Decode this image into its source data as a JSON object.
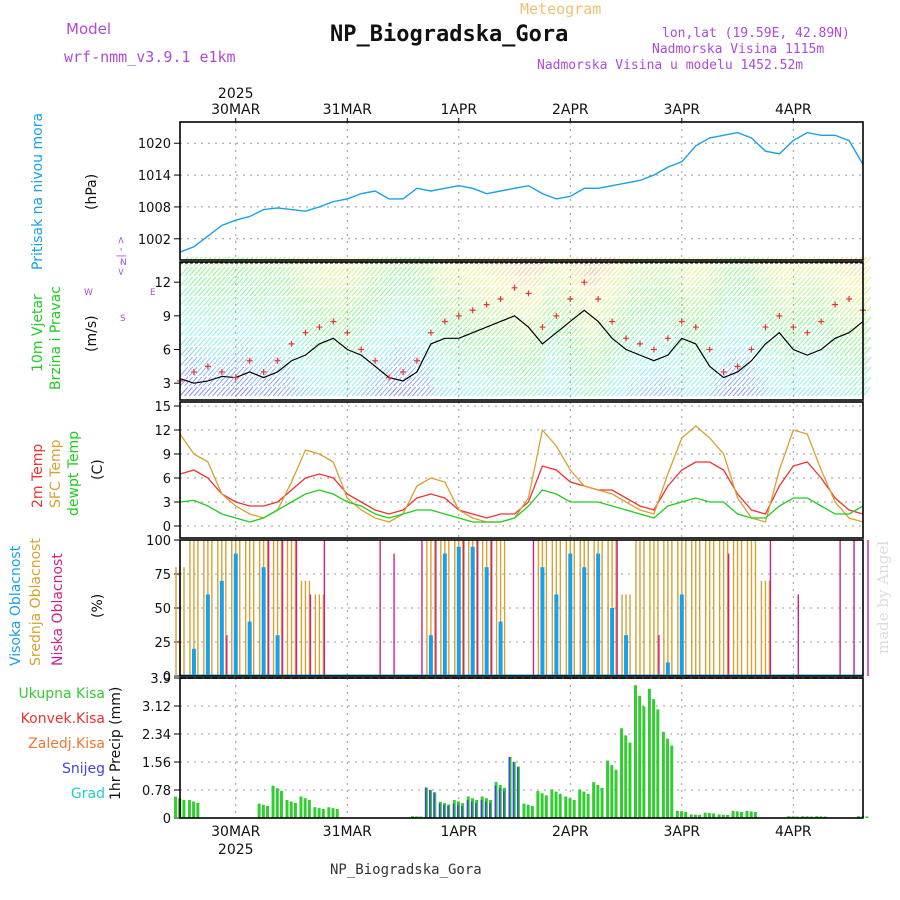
{
  "header": {
    "model_label": "Model",
    "model_name": "wrf-nmm_v3.9.1  e1km",
    "meteogram": "Meteogram",
    "station": "NP_Biogradska_Gora",
    "lonlat": "lon,lat (19.59E, 42.89N)",
    "elevation": "Nadmorska Visina 1115m",
    "model_elevation": "Nadmorska Visina u modelu 1452.52m"
  },
  "footer": {
    "station": "NP_Biogradska_Gora"
  },
  "watermark": "made by Angel",
  "colors": {
    "pressure": "#1aa0e6",
    "temp2m": "#ee3333",
    "sfc": "#d9a032",
    "dew": "#22cc22",
    "high_cloud": "#1aa0e6",
    "mid_cloud": "#d9a032",
    "low_cloud": "#cc2288",
    "total_precip": "#33cc33",
    "conv_precip": "#ee3333",
    "strat_precip": "#ee7733",
    "snow": "#4444dd",
    "grad": "#22cccc",
    "purple": "#b04ad8"
  },
  "time_axis": {
    "year_top": "2025",
    "year_bottom": "2025",
    "days": [
      "30MAR",
      "31MAR",
      "1APR",
      "2APR",
      "3APR",
      "4APR"
    ]
  },
  "panel_labels": {
    "pressure": [
      "Pritisak na nivou mora",
      "(hPa)"
    ],
    "wind": [
      "10m Vjetar",
      "Brzina i Pravac",
      "(m/s)"
    ],
    "wind_rose": {
      "n": "N",
      "s": "S",
      "e": "E",
      "w": "W",
      "arrows": "< - | - >"
    },
    "temp": [
      "2m Temp",
      "SFC Temp",
      "dewpt Temp",
      "(C)"
    ],
    "cloud": [
      "Visoka Oblacnost",
      "Srednja Oblacnost",
      "Niska Oblacnost",
      "(%)"
    ],
    "precip_axis": "1hr Precip (mm)",
    "precip_legend": [
      "Ukupna Kisa",
      "Konvek.Kisa",
      "Zaledj.Kisa",
      "Snijeg",
      "Grad"
    ]
  },
  "chart_data": [
    {
      "type": "line",
      "title": "Pritisak na nivou mora",
      "ylabel": "(hPa)",
      "ylim": [
        998,
        1024
      ],
      "yticks": [
        "1002",
        "1008",
        "1014",
        "1020"
      ],
      "x_hours": [
        0,
        3,
        6,
        9,
        12,
        15,
        18,
        21,
        24,
        27,
        30,
        33,
        36,
        39,
        42,
        45,
        48,
        51,
        54,
        57,
        60,
        63,
        66,
        69,
        72,
        75,
        78,
        81,
        84,
        87,
        90,
        93,
        96,
        99,
        102,
        105,
        108,
        111,
        114,
        117,
        120,
        123,
        126,
        129,
        132,
        135,
        138,
        141,
        144,
        147
      ],
      "series": [
        {
          "values": [
            999.5,
            1000.5,
            1002.5,
            1004.5,
            1005.5,
            1006.2,
            1007.5,
            1007.8,
            1007.5,
            1007.2,
            1008.0,
            1009.0,
            1009.5,
            1010.5,
            1011.0,
            1009.5,
            1009.5,
            1011.5,
            1011.0,
            1011.5,
            1012.0,
            1011.5,
            1010.5,
            1011.0,
            1011.5,
            1012.0,
            1010.5,
            1009.5,
            1010.0,
            1011.5,
            1011.5,
            1012.0,
            1012.5,
            1013.0,
            1014.0,
            1015.5,
            1016.5,
            1019.5,
            1021.0,
            1021.5,
            1022.0,
            1021.0,
            1018.5,
            1018.0,
            1020.5,
            1022.0,
            1021.5,
            1021.5,
            1020.5,
            1016.0
          ]
        }
      ]
    },
    {
      "type": "line",
      "title": "10m Vjetar Brzina i Pravac",
      "ylabel": "(m/s)",
      "ylim": [
        1.5,
        13.8
      ],
      "yticks": [
        "3",
        "6",
        "9",
        "12"
      ],
      "x_hours": [
        0,
        3,
        6,
        9,
        12,
        15,
        18,
        21,
        24,
        27,
        30,
        33,
        36,
        39,
        42,
        45,
        48,
        51,
        54,
        57,
        60,
        63,
        66,
        69,
        72,
        75,
        78,
        81,
        84,
        87,
        90,
        93,
        96,
        99,
        102,
        105,
        108,
        111,
        114,
        117,
        120,
        123,
        126,
        129,
        132,
        135,
        138,
        141,
        144,
        147
      ],
      "series": [
        {
          "values": [
            3.4,
            3.0,
            3.2,
            3.6,
            3.5,
            4.0,
            3.5,
            4.0,
            5.0,
            5.5,
            6.5,
            7.0,
            6.0,
            5.5,
            4.5,
            3.5,
            3.2,
            4.0,
            6.5,
            7.0,
            7.0,
            7.5,
            8.0,
            8.5,
            9.0,
            8.0,
            6.5,
            7.5,
            8.5,
            9.5,
            8.5,
            7.0,
            6.0,
            5.5,
            5.0,
            5.5,
            7.0,
            6.5,
            4.5,
            3.5,
            4.0,
            5.0,
            6.5,
            7.5,
            6.0,
            5.5,
            6.0,
            7.0,
            7.5,
            8.5
          ]
        },
        {
          "values": [
            3.2,
            4.0,
            4.5,
            4.0,
            3.5,
            5.0,
            4.0,
            5.0,
            6.5,
            7.5,
            8.0,
            8.5,
            7.5,
            6.0,
            5.0,
            3.5,
            4.0,
            5.0,
            7.5,
            8.5,
            9.0,
            9.5,
            10.0,
            10.5,
            11.5,
            11.0,
            8.0,
            9.0,
            10.5,
            12.0,
            10.5,
            8.5,
            7.0,
            6.5,
            6.0,
            7.0,
            8.5,
            8.0,
            6.0,
            4.0,
            4.5,
            6.0,
            8.0,
            9.0,
            8.0,
            7.5,
            8.5,
            10.0,
            10.5,
            9.5
          ]
        }
      ]
    },
    {
      "type": "line",
      "title": "2m Temp / SFC Temp / dewpt Temp",
      "ylabel": "(C)",
      "ylim": [
        -1.5,
        15.5
      ],
      "yticks": [
        "0",
        "3",
        "6",
        "9",
        "12",
        "15"
      ],
      "x_hours": [
        0,
        3,
        6,
        9,
        12,
        15,
        18,
        21,
        24,
        27,
        30,
        33,
        36,
        39,
        42,
        45,
        48,
        51,
        54,
        57,
        60,
        63,
        66,
        69,
        72,
        75,
        78,
        81,
        84,
        87,
        90,
        93,
        96,
        99,
        102,
        105,
        108,
        111,
        114,
        117,
        120,
        123,
        126,
        129,
        132,
        135,
        138,
        141,
        144,
        147
      ],
      "series": [
        {
          "name": "2m Temp",
          "values": [
            6.5,
            7.0,
            6.0,
            4.0,
            3.0,
            2.5,
            2.5,
            3.0,
            4.5,
            6.0,
            6.5,
            6.0,
            4.0,
            3.0,
            2.0,
            1.5,
            2.0,
            3.5,
            4.0,
            3.5,
            2.0,
            1.5,
            1.0,
            1.5,
            1.5,
            3.0,
            7.5,
            7.0,
            5.5,
            5.0,
            4.5,
            4.5,
            3.5,
            2.5,
            2.0,
            5.0,
            7.0,
            8.0,
            8.0,
            7.0,
            4.0,
            2.0,
            1.5,
            5.0,
            7.5,
            8.0,
            6.0,
            3.5,
            2.0,
            1.5
          ]
        },
        {
          "name": "SFC Temp",
          "values": [
            11.5,
            9.0,
            8.0,
            4.0,
            2.5,
            1.5,
            1.0,
            2.0,
            5.5,
            9.5,
            9.0,
            8.0,
            3.5,
            2.0,
            1.0,
            0.5,
            1.5,
            5.0,
            6.0,
            5.5,
            2.0,
            1.0,
            0.5,
            0.5,
            1.0,
            3.5,
            12.0,
            10.0,
            7.0,
            5.0,
            4.5,
            4.0,
            3.0,
            2.0,
            1.5,
            6.5,
            11.0,
            12.5,
            11.0,
            9.0,
            3.5,
            1.0,
            0.5,
            7.0,
            12.0,
            11.5,
            7.0,
            3.0,
            1.0,
            0.5
          ]
        },
        {
          "name": "dewpt Temp",
          "values": [
            3.0,
            3.2,
            2.5,
            1.5,
            1.0,
            0.5,
            1.0,
            2.0,
            3.0,
            4.0,
            4.5,
            4.0,
            3.0,
            2.5,
            1.5,
            1.0,
            1.5,
            2.0,
            2.0,
            1.5,
            1.0,
            0.5,
            0.5,
            0.5,
            1.0,
            2.5,
            4.5,
            4.0,
            3.0,
            3.0,
            3.0,
            2.5,
            2.0,
            1.5,
            1.0,
            2.5,
            3.0,
            3.5,
            3.0,
            3.0,
            1.5,
            1.0,
            1.0,
            2.5,
            3.5,
            3.5,
            2.5,
            1.5,
            1.5,
            2.5
          ]
        }
      ]
    },
    {
      "type": "bar",
      "title": "Visoka / Srednja / Niska Oblacnost",
      "ylabel": "(%)",
      "ylim": [
        0,
        100
      ],
      "yticks": [
        "0",
        "25",
        "50",
        "75",
        "100"
      ],
      "x_hours": [
        0,
        3,
        6,
        9,
        12,
        15,
        18,
        21,
        24,
        27,
        30,
        33,
        36,
        39,
        42,
        45,
        48,
        51,
        54,
        57,
        60,
        63,
        66,
        69,
        72,
        75,
        78,
        81,
        84,
        87,
        90,
        93,
        96,
        99,
        102,
        105,
        108,
        111,
        114,
        117,
        120,
        123,
        126,
        129,
        132,
        135,
        138,
        141,
        144,
        147
      ],
      "series": [
        {
          "name": "Visoka Oblacnost",
          "values": [
            0,
            20,
            60,
            70,
            90,
            40,
            80,
            30,
            0,
            0,
            0,
            0,
            0,
            0,
            0,
            0,
            0,
            0,
            30,
            90,
            95,
            95,
            80,
            40,
            0,
            0,
            80,
            60,
            90,
            80,
            90,
            50,
            30,
            0,
            0,
            10,
            60,
            0,
            0,
            0,
            0,
            0,
            0,
            0,
            0,
            0,
            0,
            0,
            0,
            0
          ]
        },
        {
          "name": "Srednja Oblacnost",
          "values": [
            80,
            100,
            100,
            100,
            100,
            100,
            100,
            100,
            100,
            70,
            60,
            0,
            0,
            0,
            0,
            0,
            0,
            0,
            100,
            100,
            100,
            100,
            100,
            100,
            0,
            0,
            100,
            100,
            100,
            100,
            100,
            100,
            60,
            100,
            100,
            100,
            100,
            100,
            100,
            100,
            100,
            100,
            70,
            0,
            0,
            0,
            0,
            0,
            0,
            0
          ]
        },
        {
          "name": "Niska Oblacnost",
          "values": [
            0,
            0,
            0,
            30,
            0,
            0,
            100,
            100,
            100,
            60,
            100,
            0,
            0,
            0,
            100,
            90,
            0,
            100,
            100,
            0,
            100,
            100,
            100,
            0,
            0,
            100,
            0,
            0,
            0,
            0,
            0,
            100,
            0,
            0,
            30,
            0,
            0,
            0,
            0,
            90,
            0,
            0,
            100,
            0,
            60,
            0,
            0,
            100,
            100,
            100
          ]
        }
      ]
    },
    {
      "type": "bar",
      "title": "1hr Precip",
      "ylabel": "1hr Precip (mm)",
      "ylim": [
        0,
        3.9
      ],
      "yticks": [
        "0",
        "0.78",
        "1.56",
        "2.34",
        "3.12",
        "3.9"
      ],
      "x_hours": [
        0,
        3,
        6,
        9,
        12,
        15,
        18,
        21,
        24,
        27,
        30,
        33,
        36,
        39,
        42,
        45,
        48,
        51,
        54,
        57,
        60,
        63,
        66,
        69,
        72,
        75,
        78,
        81,
        84,
        87,
        90,
        93,
        96,
        99,
        102,
        105,
        108,
        111,
        114,
        117,
        120,
        123,
        126,
        129,
        132,
        135,
        138,
        141,
        144,
        147
      ],
      "series": [
        {
          "name": "Ukupna Kisa",
          "values": [
            0.6,
            0.5,
            0.0,
            0.0,
            0.0,
            0.0,
            0.4,
            0.9,
            0.5,
            0.6,
            0.3,
            0.3,
            0.0,
            0.0,
            0.0,
            0.0,
            0.0,
            0.05,
            0.85,
            0.45,
            0.5,
            0.6,
            0.6,
            1.0,
            1.7,
            0.4,
            0.75,
            0.8,
            0.6,
            0.8,
            1.0,
            1.6,
            2.5,
            3.7,
            3.6,
            2.4,
            0.2,
            0.1,
            0.15,
            0.1,
            0.2,
            0.2,
            0.0,
            0.0,
            0.05,
            0.05,
            0.05,
            0.0,
            0.0,
            0.05
          ]
        },
        {
          "name": "Snijeg",
          "values": [
            0.0,
            0.0,
            0.0,
            0.0,
            0.0,
            0.0,
            0.0,
            0.0,
            0.0,
            0.0,
            0.0,
            0.0,
            0.0,
            0.0,
            0.0,
            0.0,
            0.0,
            0.0,
            0.85,
            0.4,
            0.4,
            0.5,
            0.5,
            0.9,
            1.7,
            0.0,
            0.0,
            0.0,
            0.0,
            0.0,
            0.0,
            0.0,
            0.0,
            0.0,
            0.0,
            0.0,
            0.0,
            0.0,
            0.0,
            0.0,
            0.0,
            0.0,
            0.0,
            0.0,
            0.0,
            0.0,
            0.0,
            0.0,
            0.0,
            0.0
          ]
        }
      ]
    }
  ]
}
